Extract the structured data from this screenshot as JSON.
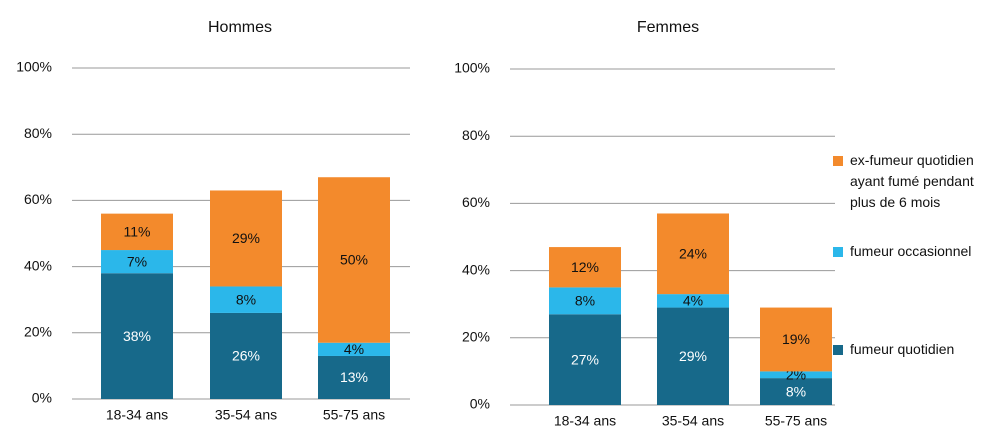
{
  "chart_data": [
    {
      "type": "stacked_bar",
      "title": "Hommes",
      "categories": [
        "18-34 ans",
        "35-54 ans",
        "55-75 ans"
      ],
      "series": [
        {
          "color": "#17698a",
          "values": [
            38,
            26,
            13
          ],
          "value_labels": [
            "38%",
            "26%",
            "13%"
          ]
        },
        {
          "color": "#2bb7ea",
          "values": [
            7,
            8,
            4
          ],
          "value_labels": [
            "7%",
            "8%",
            "4%"
          ]
        },
        {
          "color": "#f38a2c",
          "values": [
            11,
            29,
            50
          ],
          "value_labels": [
            "11%",
            "29%",
            "50%"
          ]
        }
      ],
      "ylim": [
        0,
        100
      ],
      "yticks": [
        {
          "value": 0,
          "label": "0%"
        },
        {
          "value": 20,
          "label": "20%"
        },
        {
          "value": 40,
          "label": "40%"
        },
        {
          "value": 60,
          "label": "60%"
        },
        {
          "value": 80,
          "label": "80%"
        },
        {
          "value": 100,
          "label": "100%"
        }
      ],
      "grid": true
    },
    {
      "type": "stacked_bar",
      "title": "Femmes",
      "categories": [
        "18-34 ans",
        "35-54 ans",
        "55-75 ans"
      ],
      "series": [
        {
          "name": "fumeur quotidien",
          "color": "#17698a",
          "values": [
            27,
            29,
            8
          ],
          "value_labels": [
            "27%",
            "29%",
            "8%"
          ]
        },
        {
          "name": "fumeur occasionnel",
          "color": "#2bb7ea",
          "values": [
            8,
            4,
            2
          ],
          "value_labels": [
            "8%",
            "4%",
            "2%"
          ]
        },
        {
          "name": "ex-fumeur quotidien ayant fumé pendant plus de 6 mois",
          "color": "#f38a2c",
          "values": [
            12,
            24,
            19
          ],
          "value_labels": [
            "12%",
            "24%",
            "19%"
          ]
        }
      ],
      "ylim": [
        0,
        100
      ],
      "yticks": [
        {
          "value": 0,
          "label": "0%"
        },
        {
          "value": 20,
          "label": "20%"
        },
        {
          "value": 40,
          "label": "40%"
        },
        {
          "value": 60,
          "label": "60%"
        },
        {
          "value": 80,
          "label": "80%"
        },
        {
          "value": 100,
          "label": "100%"
        }
      ],
      "grid": true,
      "legend": "right"
    }
  ]
}
